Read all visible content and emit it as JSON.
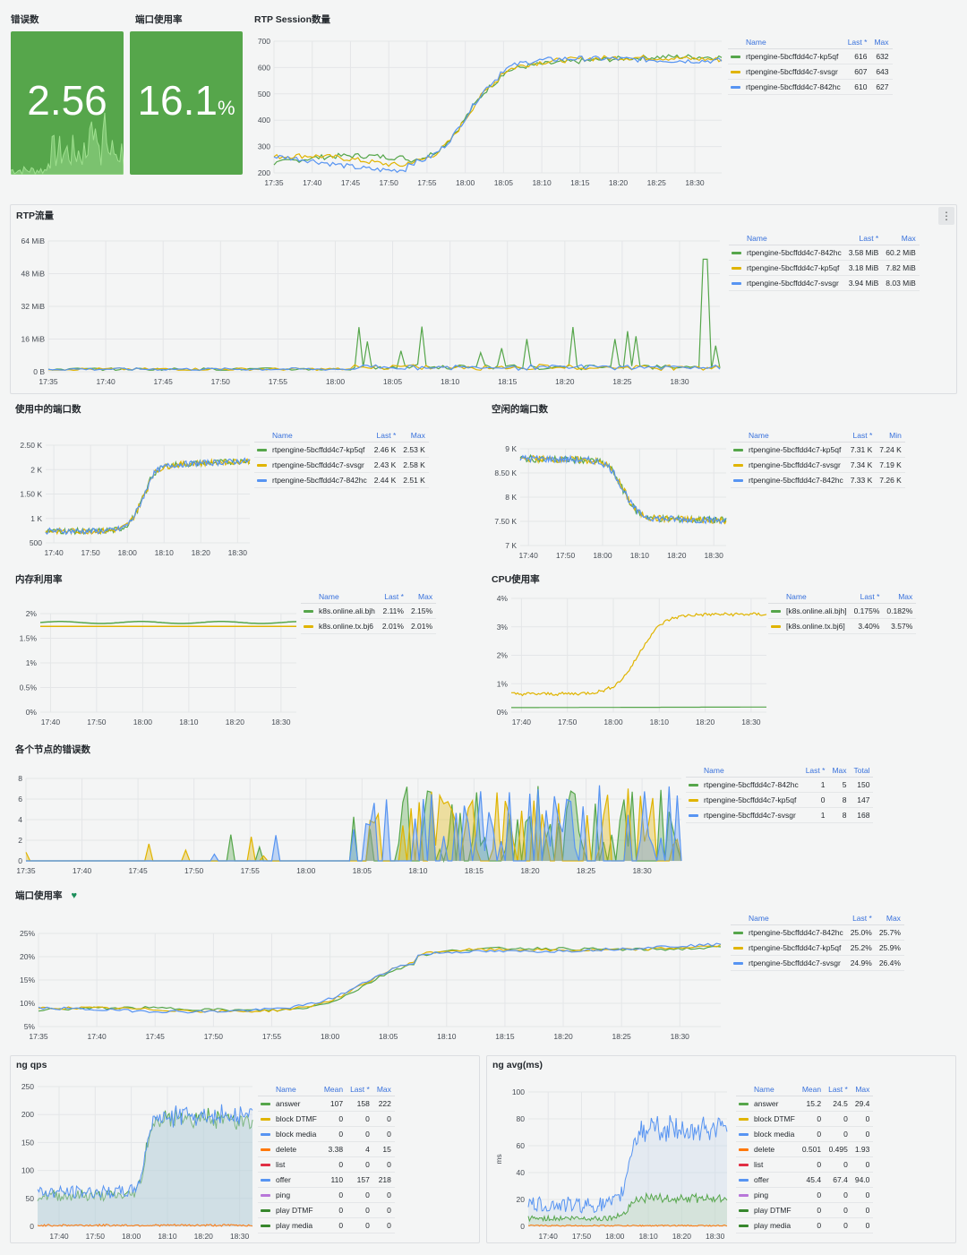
{
  "colors": {
    "green": "#56a64b",
    "yellow": "#e0b400",
    "blue": "#5794f2",
    "red": "#e02f44",
    "orange": "#ff780a",
    "purple": "#b877d9",
    "darkgreen": "#37872d",
    "grid": "#e4e6e8",
    "axis": "#464c54"
  },
  "panels": {
    "errors": {
      "title": "错误数",
      "value": "2.56"
    },
    "port_rate": {
      "title": "端口使用率",
      "value": "16.1",
      "unit": "%"
    },
    "rtp_session": {
      "title": "RTP Session数量",
      "yticks": [
        "700",
        "600",
        "500",
        "400",
        "300",
        "200"
      ],
      "xticks": [
        "17:35",
        "17:40",
        "17:45",
        "17:50",
        "17:55",
        "18:00",
        "18:05",
        "18:10",
        "18:15",
        "18:20",
        "18:25",
        "18:30"
      ],
      "legend": {
        "headers": [
          "Name",
          "Last *",
          "Max"
        ],
        "rows": [
          {
            "name": "rtpengine-5bcffdd4c7-kp5qf",
            "color": "green",
            "v": [
              "616",
              "632"
            ]
          },
          {
            "name": "rtpengine-5bcffdd4c7-svsgr",
            "color": "yellow",
            "v": [
              "607",
              "643"
            ]
          },
          {
            "name": "rtpengine-5bcffdd4c7-842hc",
            "color": "blue",
            "v": [
              "610",
              "627"
            ]
          }
        ]
      }
    },
    "rtp_traffic": {
      "title": "RTP流量",
      "menu": "⋮",
      "yticks": [
        "64 MiB",
        "48 MiB",
        "32 MiB",
        "16 MiB",
        "0 B"
      ],
      "xticks": [
        "17:35",
        "17:40",
        "17:45",
        "17:50",
        "17:55",
        "18:00",
        "18:05",
        "18:10",
        "18:15",
        "18:20",
        "18:25",
        "18:30"
      ],
      "legend": {
        "headers": [
          "Name",
          "Last *",
          "Max"
        ],
        "rows": [
          {
            "name": "rtpengine-5bcffdd4c7-842hc",
            "color": "green",
            "v": [
              "3.58 MiB",
              "60.2 MiB"
            ]
          },
          {
            "name": "rtpengine-5bcffdd4c7-kp5qf",
            "color": "yellow",
            "v": [
              "3.18 MiB",
              "7.82 MiB"
            ]
          },
          {
            "name": "rtpengine-5bcffdd4c7-svsgr",
            "color": "blue",
            "v": [
              "3.94 MiB",
              "8.03 MiB"
            ]
          }
        ]
      }
    },
    "ports_used": {
      "title": "使用中的端口数",
      "yticks": [
        "2.50 K",
        "2 K",
        "1.50 K",
        "1 K",
        "500"
      ],
      "xticks": [
        "17:40",
        "17:50",
        "18:00",
        "18:10",
        "18:20",
        "18:30"
      ],
      "legend": {
        "headers": [
          "Name",
          "Last *",
          "Max"
        ],
        "rows": [
          {
            "name": "rtpengine-5bcffdd4c7-kp5qf",
            "color": "green",
            "v": [
              "2.46 K",
              "2.53 K"
            ]
          },
          {
            "name": "rtpengine-5bcffdd4c7-svsgr",
            "color": "yellow",
            "v": [
              "2.43 K",
              "2.58 K"
            ]
          },
          {
            "name": "rtpengine-5bcffdd4c7-842hc",
            "color": "blue",
            "v": [
              "2.44 K",
              "2.51 K"
            ]
          }
        ]
      }
    },
    "ports_free": {
      "title": "空闲的端口数",
      "yticks": [
        "9 K",
        "8.50 K",
        "8 K",
        "7.50 K",
        "7 K"
      ],
      "xticks": [
        "17:40",
        "17:50",
        "18:00",
        "18:10",
        "18:20",
        "18:30"
      ],
      "legend": {
        "headers": [
          "Name",
          "Last *",
          "Min"
        ],
        "rows": [
          {
            "name": "rtpengine-5bcffdd4c7-kp5qf",
            "color": "green",
            "v": [
              "7.31 K",
              "7.24 K"
            ]
          },
          {
            "name": "rtpengine-5bcffdd4c7-svsgr",
            "color": "yellow",
            "v": [
              "7.34 K",
              "7.19 K"
            ]
          },
          {
            "name": "rtpengine-5bcffdd4c7-842hc",
            "color": "blue",
            "v": [
              "7.33 K",
              "7.26 K"
            ]
          }
        ]
      }
    },
    "mem": {
      "title": "内存利用率",
      "yticks": [
        "2%",
        "1.5%",
        "1%",
        "0.5%",
        "0%"
      ],
      "xticks": [
        "17:40",
        "17:50",
        "18:00",
        "18:10",
        "18:20",
        "18:30"
      ],
      "legend": {
        "headers": [
          "Name",
          "Last *",
          "Max"
        ],
        "rows": [
          {
            "name": "k8s.online.ali.bjh",
            "color": "green",
            "v": [
              "2.11%",
              "2.15%"
            ]
          },
          {
            "name": "k8s.online.tx.bj6",
            "color": "yellow",
            "v": [
              "2.01%",
              "2.01%"
            ]
          }
        ]
      }
    },
    "cpu": {
      "title": "CPU使用率",
      "yticks": [
        "4%",
        "3%",
        "2%",
        "1%",
        "0%"
      ],
      "xticks": [
        "17:40",
        "17:50",
        "18:00",
        "18:10",
        "18:20",
        "18:30"
      ],
      "legend": {
        "headers": [
          "Name",
          "Last *",
          "Max"
        ],
        "rows": [
          {
            "name": "[k8s.online.ali.bjh]",
            "color": "green",
            "v": [
              "0.175%",
              "0.182%"
            ]
          },
          {
            "name": "[k8s.online.tx.bj6]",
            "color": "yellow",
            "v": [
              "3.40%",
              "3.57%"
            ]
          }
        ]
      }
    },
    "node_errors": {
      "title": "各个节点的错误数",
      "yticks": [
        "8",
        "6",
        "4",
        "2",
        "0"
      ],
      "xticks": [
        "17:35",
        "17:40",
        "17:45",
        "17:50",
        "17:55",
        "18:00",
        "18:05",
        "18:10",
        "18:15",
        "18:20",
        "18:25",
        "18:30"
      ],
      "legend": {
        "headers": [
          "Name",
          "Last *",
          "Max",
          "Total"
        ],
        "rows": [
          {
            "name": "rtpengine-5bcffdd4c7-842hc",
            "color": "green",
            "v": [
              "1",
              "5",
              "150"
            ]
          },
          {
            "name": "rtpengine-5bcffdd4c7-kp5qf",
            "color": "yellow",
            "v": [
              "0",
              "8",
              "147"
            ]
          },
          {
            "name": "rtpengine-5bcffdd4c7-svsgr",
            "color": "blue",
            "v": [
              "1",
              "8",
              "168"
            ]
          }
        ]
      }
    },
    "port_usage": {
      "title": "端口使用率",
      "heart": "♥",
      "yticks": [
        "25%",
        "20%",
        "15%",
        "10%",
        "5%"
      ],
      "xticks": [
        "17:35",
        "17:40",
        "17:45",
        "17:50",
        "17:55",
        "18:00",
        "18:05",
        "18:10",
        "18:15",
        "18:20",
        "18:25",
        "18:30"
      ],
      "legend": {
        "headers": [
          "Name",
          "Last *",
          "Max"
        ],
        "rows": [
          {
            "name": "rtpengine-5bcffdd4c7-842hc",
            "color": "green",
            "v": [
              "25.0%",
              "25.7%"
            ]
          },
          {
            "name": "rtpengine-5bcffdd4c7-kp5qf",
            "color": "yellow",
            "v": [
              "25.2%",
              "25.9%"
            ]
          },
          {
            "name": "rtpengine-5bcffdd4c7-svsgr",
            "color": "blue",
            "v": [
              "24.9%",
              "26.4%"
            ]
          }
        ]
      }
    },
    "ng_qps": {
      "title": "ng qps",
      "yticks": [
        "250",
        "200",
        "150",
        "100",
        "50",
        "0"
      ],
      "xticks": [
        "17:40",
        "17:50",
        "18:00",
        "18:10",
        "18:20",
        "18:30"
      ],
      "legend": {
        "headers": [
          "Name",
          "Mean",
          "Last *",
          "Max"
        ],
        "rows": [
          {
            "name": "answer",
            "color": "green",
            "v": [
              "107",
              "158",
              "222"
            ]
          },
          {
            "name": "block DTMF",
            "color": "yellow",
            "v": [
              "0",
              "0",
              "0"
            ]
          },
          {
            "name": "block media",
            "color": "blue",
            "v": [
              "0",
              "0",
              "0"
            ]
          },
          {
            "name": "delete",
            "color": "orange",
            "v": [
              "3.38",
              "4",
              "15"
            ]
          },
          {
            "name": "list",
            "color": "red",
            "v": [
              "0",
              "0",
              "0"
            ]
          },
          {
            "name": "offer",
            "color": "blue",
            "v": [
              "110",
              "157",
              "218"
            ]
          },
          {
            "name": "ping",
            "color": "purple",
            "v": [
              "0",
              "0",
              "0"
            ]
          },
          {
            "name": "play DTMF",
            "color": "darkgreen",
            "v": [
              "0",
              "0",
              "0"
            ]
          },
          {
            "name": "play media",
            "color": "darkgreen",
            "v": [
              "0",
              "0",
              "0"
            ]
          }
        ]
      }
    },
    "ng_avg": {
      "title": "ng avg(ms)",
      "yunit": "ms",
      "yticks": [
        "100",
        "80",
        "60",
        "40",
        "20",
        "0"
      ],
      "xticks": [
        "17:40",
        "17:50",
        "18:00",
        "18:10",
        "18:20",
        "18:30"
      ],
      "legend": {
        "headers": [
          "Name",
          "Mean",
          "Last *",
          "Max"
        ],
        "rows": [
          {
            "name": "answer",
            "color": "green",
            "v": [
              "15.2",
              "24.5",
              "29.4"
            ]
          },
          {
            "name": "block DTMF",
            "color": "yellow",
            "v": [
              "0",
              "0",
              "0"
            ]
          },
          {
            "name": "block media",
            "color": "blue",
            "v": [
              "0",
              "0",
              "0"
            ]
          },
          {
            "name": "delete",
            "color": "orange",
            "v": [
              "0.501",
              "0.495",
              "1.93"
            ]
          },
          {
            "name": "list",
            "color": "red",
            "v": [
              "0",
              "0",
              "0"
            ]
          },
          {
            "name": "offer",
            "color": "blue",
            "v": [
              "45.4",
              "67.4",
              "94.0"
            ]
          },
          {
            "name": "ping",
            "color": "purple",
            "v": [
              "0",
              "0",
              "0"
            ]
          },
          {
            "name": "play DTMF",
            "color": "darkgreen",
            "v": [
              "0",
              "0",
              "0"
            ]
          },
          {
            "name": "play media",
            "color": "darkgreen",
            "v": [
              "0",
              "0",
              "0"
            ]
          }
        ]
      }
    }
  }
}
